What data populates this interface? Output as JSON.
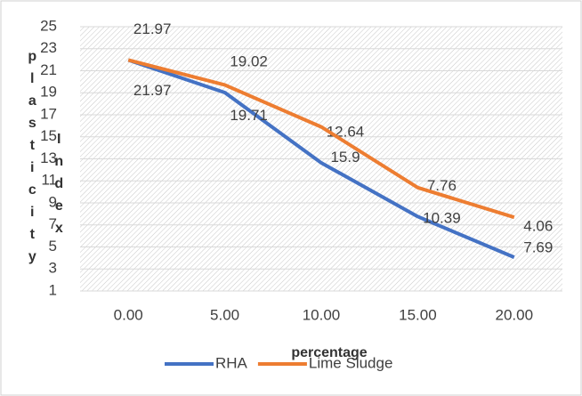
{
  "chart_data": {
    "type": "line",
    "x_label": "percentage",
    "y_label": [
      "plasticity",
      "Index"
    ],
    "categories": [
      "0.00",
      "5.00",
      "10.00",
      "15.00",
      "20.00"
    ],
    "series": [
      {
        "name": "RHA",
        "color": "#4472c4",
        "values": [
          21.97,
          19.02,
          12.64,
          7.76,
          4.06
        ]
      },
      {
        "name": "Lime Sludge",
        "color": "#ed7d31",
        "values": [
          21.97,
          19.71,
          15.9,
          10.39,
          7.69
        ]
      }
    ],
    "ylim": [
      1,
      25
    ],
    "yticks": [
      1,
      3,
      5,
      7,
      9,
      11,
      13,
      15,
      17,
      19,
      21,
      23,
      25
    ],
    "grid": true
  }
}
